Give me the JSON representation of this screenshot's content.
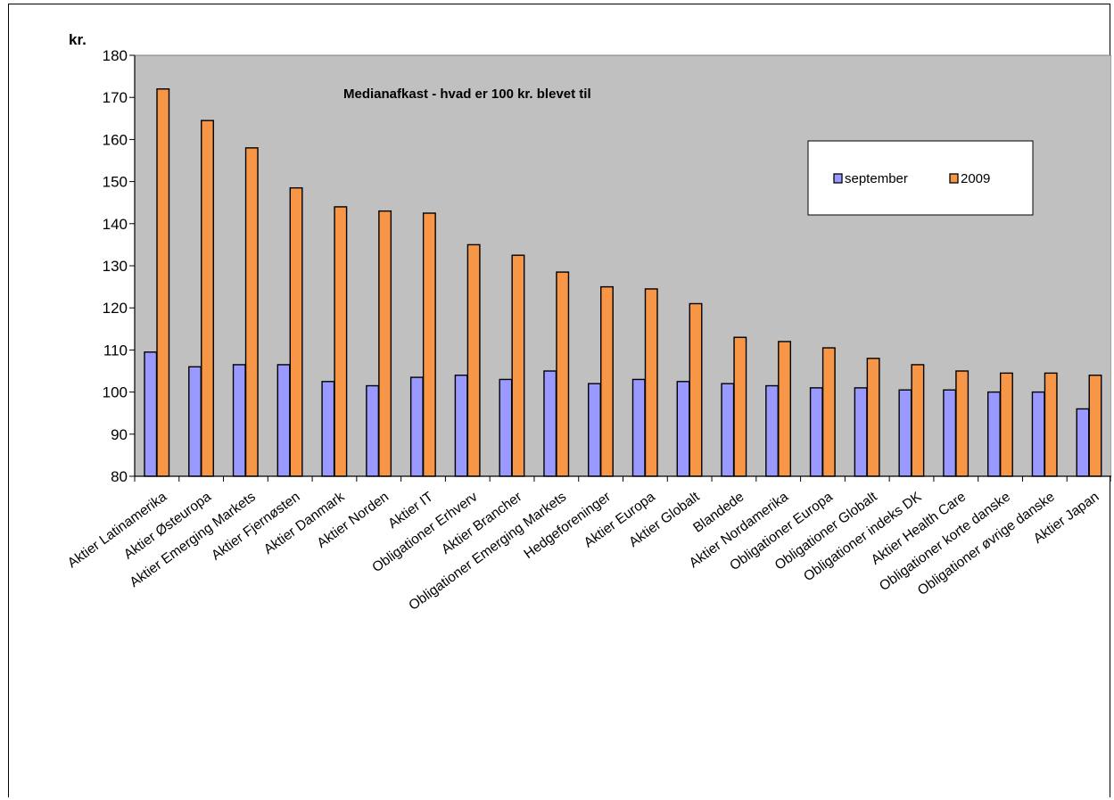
{
  "chart_data": {
    "type": "bar",
    "title": "Medianafkast - hvad er 100 kr. blevet til",
    "ylabel": "kr.",
    "xlabel": "",
    "ylim": [
      80,
      180
    ],
    "yticks": [
      80,
      90,
      100,
      110,
      120,
      130,
      140,
      150,
      160,
      170,
      180
    ],
    "grid": false,
    "legend_position": "top-right",
    "categories": [
      "Aktier Latinamerika",
      "Aktier Østeuropa",
      "Aktier Emerging Markets",
      "Aktier Fjernøsten",
      "Aktier Danmark",
      "Aktier Norden",
      "Aktier IT",
      "Obligationer Erhverv",
      "Aktier Brancher",
      "Obligationer Emerging Markets",
      "Hedgeforeninger",
      "Aktier Europa",
      "Aktier Globalt",
      "Blandede",
      "Aktier Nordamerika",
      "Obligationer Europa",
      "Obligationer Globalt",
      "Obligationer indeks DK",
      "Aktier Health Care",
      "Obligationer korte danske",
      "Obligationer øvrige danske",
      "Aktier Japan"
    ],
    "series": [
      {
        "name": "september",
        "color": "#9999ff",
        "values": [
          109.5,
          106,
          106.5,
          106.5,
          102.5,
          101.5,
          103.5,
          104,
          103,
          105,
          102,
          103,
          102.5,
          102,
          101.5,
          101,
          101,
          100.5,
          100.5,
          100,
          100,
          96
        ]
      },
      {
        "name": "2009",
        "color": "#f79646",
        "values": [
          172,
          164.5,
          158,
          148.5,
          144,
          143,
          142.5,
          135,
          132.5,
          128.5,
          125,
          124.5,
          121,
          113,
          112,
          110.5,
          108,
          106.5,
          105,
          104.5,
          104.5,
          104
        ]
      }
    ],
    "plot_bg": "#c0c0c0"
  }
}
